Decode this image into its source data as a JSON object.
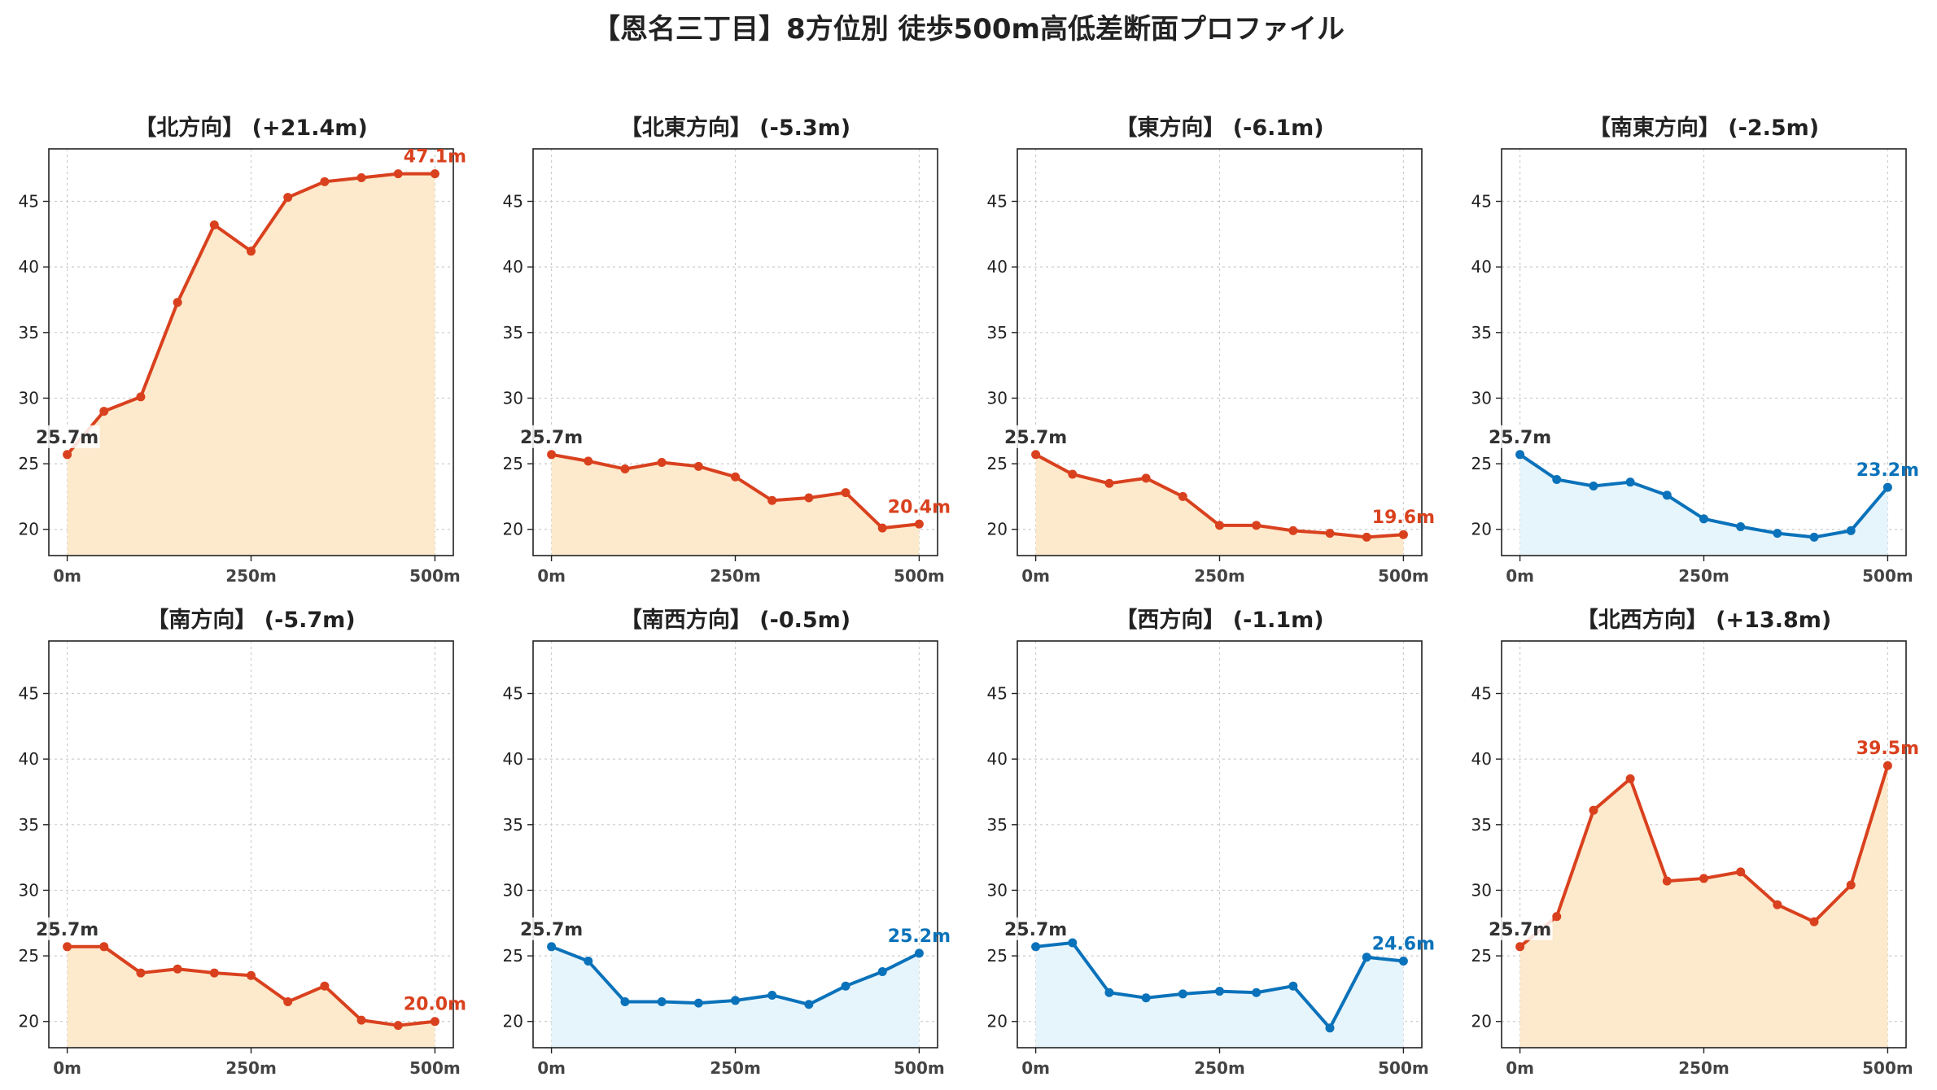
{
  "title": "【恩名三丁目】8方位別 徒歩500m高低差断面プロファイル",
  "colors": {
    "up_line": "#d9411e",
    "up_fill": "#fde9cc",
    "down_line": "#0a72ba",
    "down_fill": "#e6f4fb",
    "start_label": "#333333",
    "grid": "#cccccc"
  },
  "chart_data": [
    {
      "type": "area",
      "title": "【北方向】 (+21.4m)",
      "trend": "up",
      "x": [
        0,
        50,
        100,
        150,
        200,
        250,
        300,
        350,
        400,
        450,
        500
      ],
      "values": [
        25.7,
        29.0,
        30.1,
        37.3,
        43.2,
        41.2,
        45.3,
        46.5,
        46.8,
        47.1,
        47.1
      ],
      "start_label": "25.7m",
      "end_label": "47.1m",
      "xticks": [
        "0m",
        "250m",
        "500m"
      ],
      "xtick_values": [
        0,
        250,
        500
      ],
      "yticks": [
        20,
        25,
        30,
        35,
        40,
        45
      ],
      "ylim": [
        18,
        49
      ],
      "grid": true
    },
    {
      "type": "area",
      "title": "【北東方向】 (-5.3m)",
      "trend": "up",
      "x": [
        0,
        50,
        100,
        150,
        200,
        250,
        300,
        350,
        400,
        450,
        500
      ],
      "values": [
        25.7,
        25.2,
        24.6,
        25.1,
        24.8,
        24.0,
        22.2,
        22.4,
        22.8,
        20.1,
        20.4
      ],
      "start_label": "25.7m",
      "end_label": "20.4m",
      "xticks": [
        "0m",
        "250m",
        "500m"
      ],
      "xtick_values": [
        0,
        250,
        500
      ],
      "yticks": [
        20,
        25,
        30,
        35,
        40,
        45
      ],
      "ylim": [
        18,
        49
      ],
      "grid": true
    },
    {
      "type": "area",
      "title": "【東方向】 (-6.1m)",
      "trend": "up",
      "x": [
        0,
        50,
        100,
        150,
        200,
        250,
        300,
        350,
        400,
        450,
        500
      ],
      "values": [
        25.7,
        24.2,
        23.5,
        23.9,
        22.5,
        20.3,
        20.3,
        19.9,
        19.7,
        19.4,
        19.6
      ],
      "start_label": "25.7m",
      "end_label": "19.6m",
      "xticks": [
        "0m",
        "250m",
        "500m"
      ],
      "xtick_values": [
        0,
        250,
        500
      ],
      "yticks": [
        20,
        25,
        30,
        35,
        40,
        45
      ],
      "ylim": [
        18,
        49
      ],
      "grid": true
    },
    {
      "type": "area",
      "title": "【南東方向】 (-2.5m)",
      "trend": "down",
      "x": [
        0,
        50,
        100,
        150,
        200,
        250,
        300,
        350,
        400,
        450,
        500
      ],
      "values": [
        25.7,
        23.8,
        23.3,
        23.6,
        22.6,
        20.8,
        20.2,
        19.7,
        19.4,
        19.9,
        23.2
      ],
      "start_label": "25.7m",
      "end_label": "23.2m",
      "xticks": [
        "0m",
        "250m",
        "500m"
      ],
      "xtick_values": [
        0,
        250,
        500
      ],
      "yticks": [
        20,
        25,
        30,
        35,
        40,
        45
      ],
      "ylim": [
        18,
        49
      ],
      "grid": true
    },
    {
      "type": "area",
      "title": "【南方向】 (-5.7m)",
      "trend": "up",
      "x": [
        0,
        50,
        100,
        150,
        200,
        250,
        300,
        350,
        400,
        450,
        500
      ],
      "values": [
        25.7,
        25.7,
        23.7,
        24.0,
        23.7,
        23.5,
        21.5,
        22.7,
        20.1,
        19.7,
        20.0
      ],
      "start_label": "25.7m",
      "end_label": "20.0m",
      "xticks": [
        "0m",
        "250m",
        "500m"
      ],
      "xtick_values": [
        0,
        250,
        500
      ],
      "yticks": [
        20,
        25,
        30,
        35,
        40,
        45
      ],
      "ylim": [
        18,
        49
      ],
      "grid": true
    },
    {
      "type": "area",
      "title": "【南西方向】 (-0.5m)",
      "trend": "down",
      "x": [
        0,
        50,
        100,
        150,
        200,
        250,
        300,
        350,
        400,
        450,
        500
      ],
      "values": [
        25.7,
        24.6,
        21.5,
        21.5,
        21.4,
        21.6,
        22.0,
        21.3,
        22.7,
        23.8,
        25.2
      ],
      "start_label": "25.7m",
      "end_label": "25.2m",
      "xticks": [
        "0m",
        "250m",
        "500m"
      ],
      "xtick_values": [
        0,
        250,
        500
      ],
      "yticks": [
        20,
        25,
        30,
        35,
        40,
        45
      ],
      "ylim": [
        18,
        49
      ],
      "grid": true
    },
    {
      "type": "area",
      "title": "【西方向】 (-1.1m)",
      "trend": "down",
      "x": [
        0,
        50,
        100,
        150,
        200,
        250,
        300,
        350,
        400,
        450,
        500
      ],
      "values": [
        25.7,
        26.0,
        22.2,
        21.8,
        22.1,
        22.3,
        22.2,
        22.7,
        19.5,
        24.9,
        24.6
      ],
      "start_label": "25.7m",
      "end_label": "24.6m",
      "xticks": [
        "0m",
        "250m",
        "500m"
      ],
      "xtick_values": [
        0,
        250,
        500
      ],
      "yticks": [
        20,
        25,
        30,
        35,
        40,
        45
      ],
      "ylim": [
        18,
        49
      ],
      "grid": true
    },
    {
      "type": "area",
      "title": "【北西方向】 (+13.8m)",
      "trend": "up",
      "x": [
        0,
        50,
        100,
        150,
        200,
        250,
        300,
        350,
        400,
        450,
        500
      ],
      "values": [
        25.7,
        28.0,
        36.1,
        38.5,
        30.7,
        30.9,
        31.4,
        28.9,
        27.6,
        30.4,
        39.5
      ],
      "start_label": "25.7m",
      "end_label": "39.5m",
      "xticks": [
        "0m",
        "250m",
        "500m"
      ],
      "xtick_values": [
        0,
        250,
        500
      ],
      "yticks": [
        20,
        25,
        30,
        35,
        40,
        45
      ],
      "ylim": [
        18,
        49
      ],
      "grid": true
    }
  ]
}
